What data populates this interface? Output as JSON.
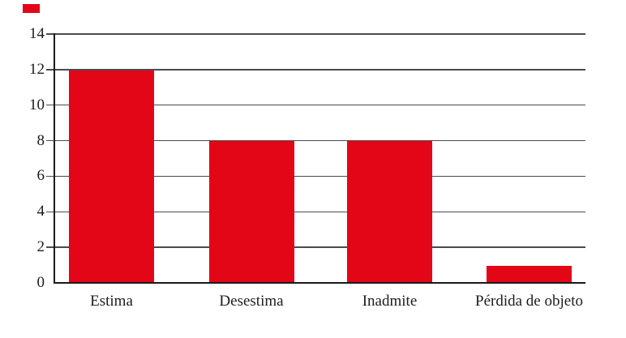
{
  "chart_data": {
    "type": "bar",
    "title": "",
    "xlabel": "",
    "ylabel": "",
    "categories": [
      "Estima",
      "Desestima",
      "Inadmite",
      "Pérdida de objeto"
    ],
    "values": [
      12,
      8,
      8,
      1
    ],
    "series": [
      {
        "name": "",
        "values": [
          12,
          8,
          8,
          1
        ]
      }
    ],
    "ylim": [
      0,
      14
    ],
    "ytick_step": 2,
    "ytick_labels": [
      "0",
      "2",
      "4",
      "6",
      "8",
      "10",
      "12",
      "14"
    ],
    "grid": true,
    "legend_position": "none",
    "colors": {
      "bar": "#e20617",
      "gridline": "#4b4b4b",
      "axis": "#1a1a1a",
      "text": "#1c1c1c",
      "background": "#ffffff",
      "corner_marker": "#e20617"
    }
  },
  "decorations": {
    "corner_marker": "red-square"
  }
}
